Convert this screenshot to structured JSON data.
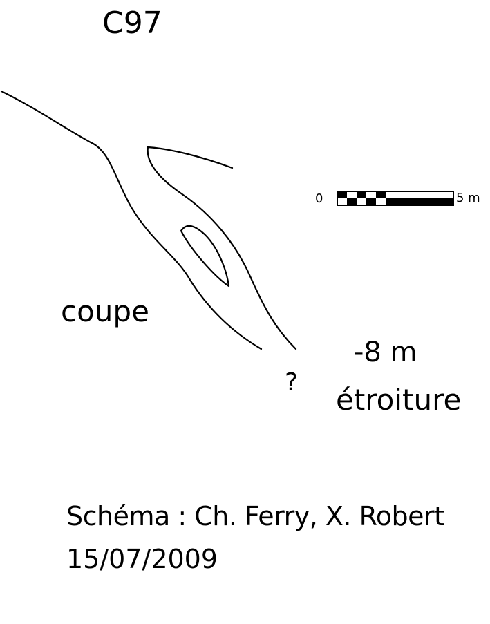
{
  "survey_id": "C97",
  "section_label": "coupe",
  "depth_label": "-8 m",
  "question_mark": "?",
  "feature_label": "étroiture",
  "credit": "Schéma : Ch. Ferry, X. Robert",
  "date": "15/07/2009",
  "scale_bar": {
    "start_label": "0",
    "end_label": "5 m",
    "segments": 6
  },
  "colors": {
    "ink": "#000000",
    "paper": "#ffffff"
  }
}
